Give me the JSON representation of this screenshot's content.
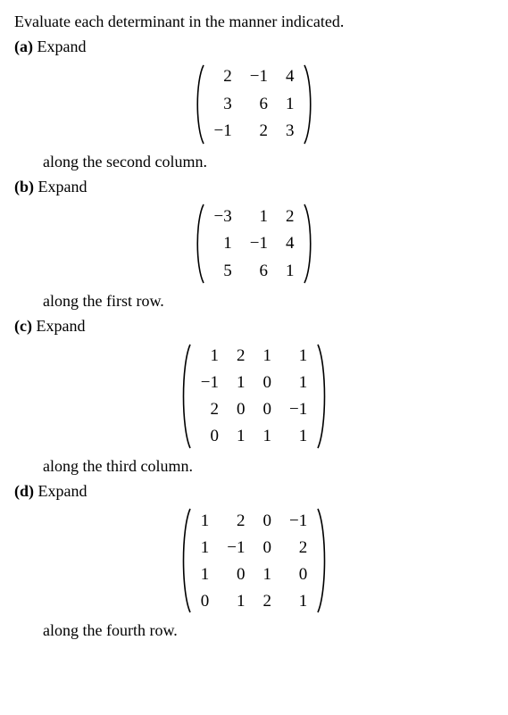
{
  "prompt": "Evaluate each determinant in the manner indicated.",
  "parts": {
    "a": {
      "label": "(a)",
      "lead": "Expand",
      "instruction": "along the second column.",
      "matrix": {
        "rows": [
          [
            "2",
            "−1",
            "4"
          ],
          [
            "3",
            "6",
            "1"
          ],
          [
            "−1",
            "2",
            "3"
          ]
        ],
        "cell_font_size": 19,
        "paren_height": 92,
        "paren_width": 14
      }
    },
    "b": {
      "label": "(b)",
      "lead": "Expand",
      "instruction": "along the first row.",
      "matrix": {
        "rows": [
          [
            "−3",
            "1",
            "2"
          ],
          [
            "1",
            "−1",
            "4"
          ],
          [
            "5",
            "6",
            "1"
          ]
        ],
        "cell_font_size": 19,
        "paren_height": 92,
        "paren_width": 14
      }
    },
    "c": {
      "label": "(c)",
      "lead": "Expand",
      "instruction": "along the third column.",
      "matrix": {
        "rows": [
          [
            "1",
            "2",
            "1",
            "1"
          ],
          [
            "−1",
            "1",
            "0",
            "1"
          ],
          [
            "2",
            "0",
            "0",
            "−1"
          ],
          [
            "0",
            "1",
            "1",
            "1"
          ]
        ],
        "cell_font_size": 19,
        "paren_height": 120,
        "paren_width": 15
      }
    },
    "d": {
      "label": "(d)",
      "lead": "Expand",
      "instruction": "along the fourth row.",
      "matrix": {
        "rows": [
          [
            "1",
            "2",
            "0",
            "−1"
          ],
          [
            "1",
            "−1",
            "0",
            "2"
          ],
          [
            "1",
            "0",
            "1",
            "0"
          ],
          [
            "0",
            "1",
            "2",
            "1"
          ]
        ],
        "cell_font_size": 19,
        "paren_height": 120,
        "paren_width": 15
      }
    }
  },
  "colors": {
    "text": "#000000",
    "background": "#ffffff"
  }
}
